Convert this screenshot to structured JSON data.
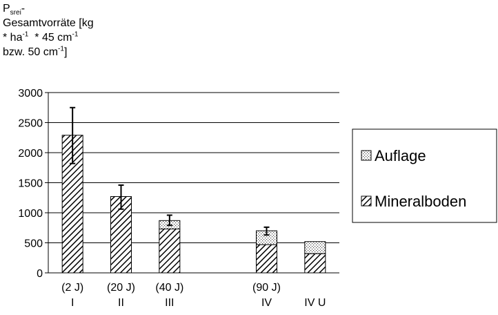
{
  "chart_data": {
    "type": "bar",
    "stacked": true,
    "ylabel": {
      "symbol": "P",
      "symbol_sub": "srei",
      "line1_tail": "-",
      "line2": "Gesamtvorräte [kg",
      "line3_a": "* ha",
      "line3_sup1": "-1",
      "line3_b": "  * 45 cm",
      "line3_sup2": "-1",
      "line4_a": "bzw. 50 cm",
      "line4_sup": "-1",
      "line4_b": "]"
    },
    "ylim": [
      0,
      3000
    ],
    "yticks": [
      0,
      500,
      1000,
      1500,
      2000,
      2500,
      3000
    ],
    "grid": true,
    "legend_position": "right",
    "categories": [
      {
        "top": "(2 J)",
        "bottom": "I"
      },
      {
        "top": "(20 J)",
        "bottom": "II"
      },
      {
        "top": "(40 J)",
        "bottom": "III"
      },
      {
        "top": "",
        "bottom": ""
      },
      {
        "top": "(90 J)",
        "bottom": "IV"
      },
      {
        "top": "",
        "bottom": "IV U"
      }
    ],
    "series": [
      {
        "name": "Mineralboden",
        "values": [
          2290,
          1270,
          730,
          null,
          470,
          320
        ],
        "pattern": "hatch"
      },
      {
        "name": "Auflage",
        "values": [
          0,
          0,
          140,
          null,
          230,
          200
        ],
        "pattern": "dots"
      }
    ],
    "legend_order": [
      "Auflage",
      "Mineralboden"
    ],
    "error_bars": [
      {
        "category": 0,
        "low": 1820,
        "high": 2750
      },
      {
        "category": 1,
        "low": 1060,
        "high": 1460
      },
      {
        "category": 2,
        "low": 790,
        "high": 960
      },
      {
        "category": 4,
        "low": 630,
        "high": 760
      }
    ]
  }
}
